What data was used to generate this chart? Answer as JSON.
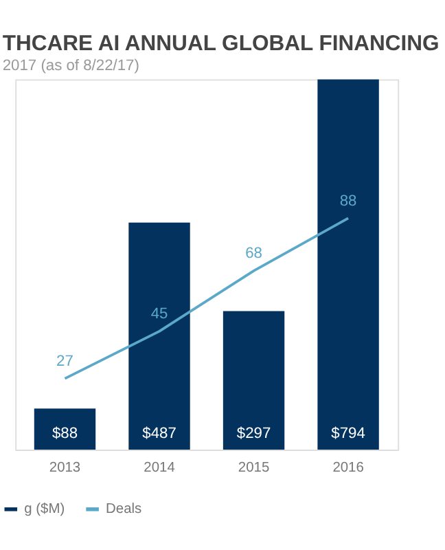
{
  "chart_data": {
    "type": "bar",
    "title": "THCARE AI ANNUAL GLOBAL FINANCING",
    "subtitle": "2017 (as of 8/22/17)",
    "categories": [
      "2013",
      "2014",
      "2015",
      "2016"
    ],
    "series": [
      {
        "name": "g ($M)",
        "color": "#04325f",
        "values": [
          88,
          487,
          297,
          794
        ],
        "value_labels": [
          "$88",
          "$487",
          "$297",
          "$794"
        ]
      },
      {
        "name": "Deals",
        "type": "line",
        "axis": "y2",
        "color": "#5ba8c8",
        "values": [
          27,
          45,
          68,
          88
        ],
        "value_labels": [
          "27",
          "45",
          "68",
          "88"
        ]
      }
    ],
    "legend": "bottom left",
    "grid": false
  }
}
